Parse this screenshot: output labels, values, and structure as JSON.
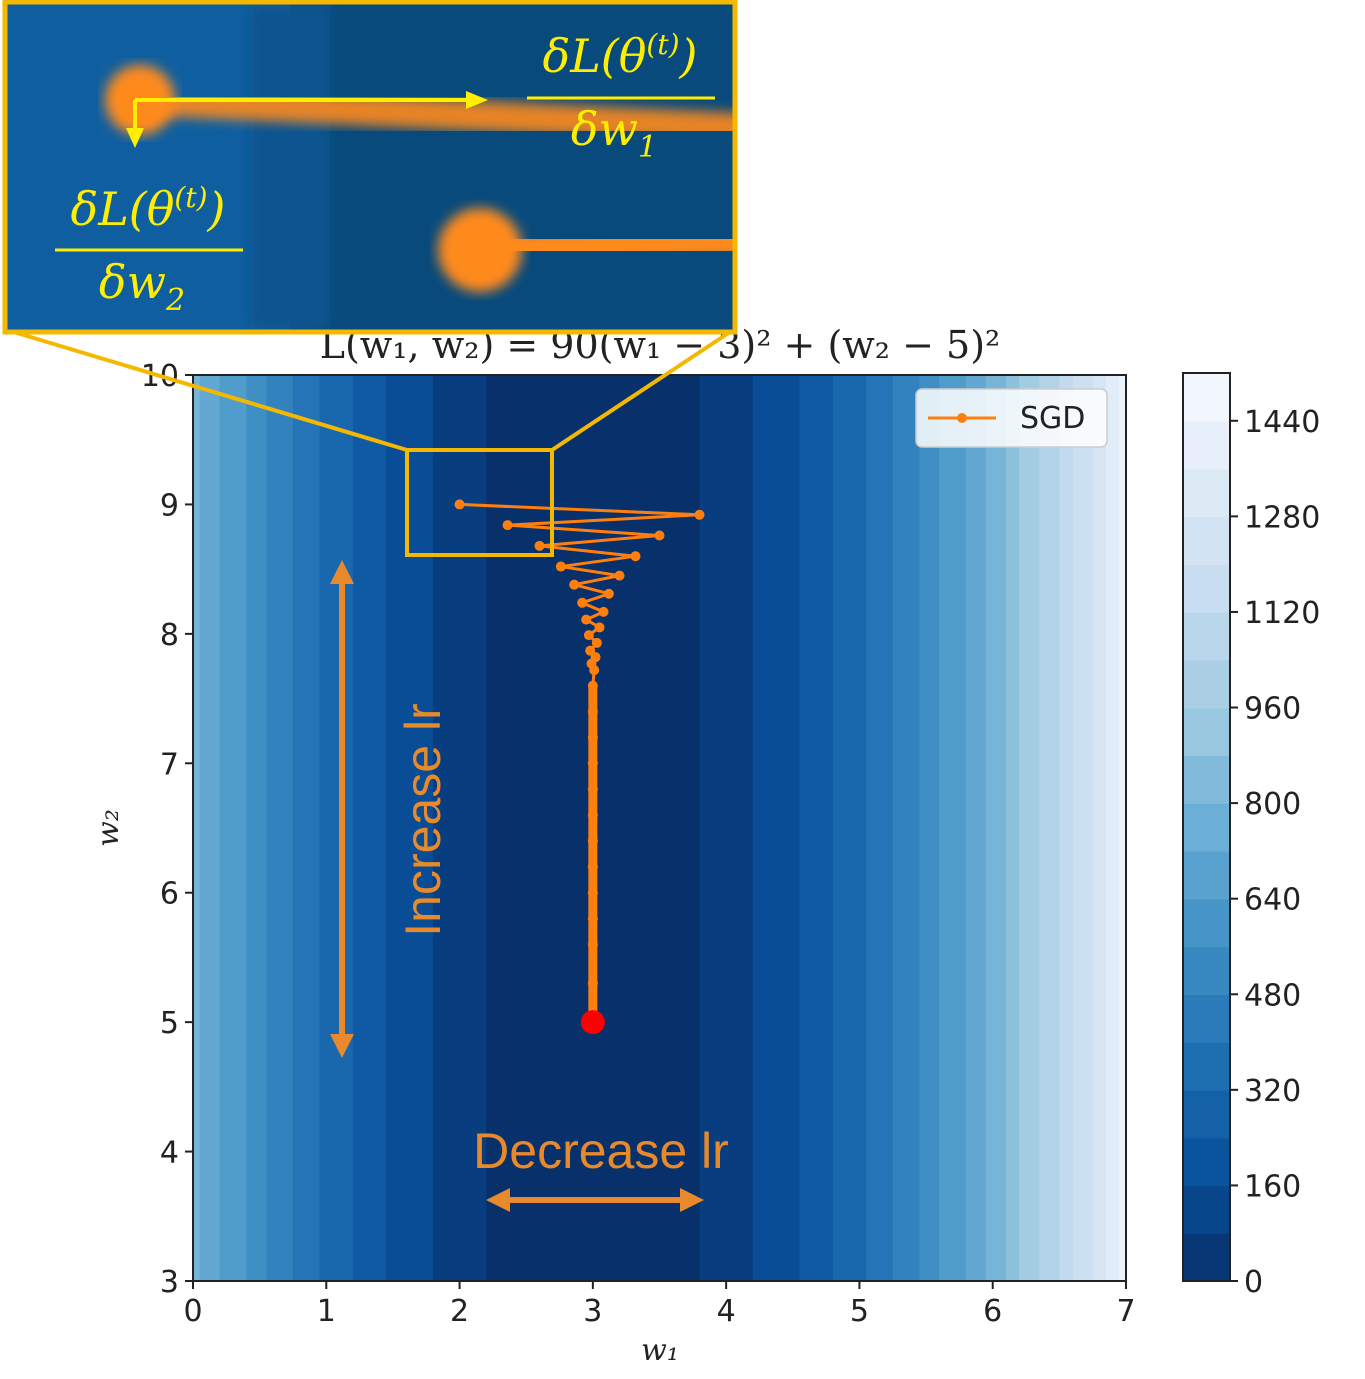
{
  "chart_data": {
    "type": "contour",
    "title": "L(w₁, w₂) = 90(w₁ − 3)² + (w₂ − 5)²",
    "xlabel": "w₁",
    "ylabel": "w₂",
    "xlim": [
      0,
      7
    ],
    "ylim": [
      3,
      10
    ],
    "xticks": [
      "0",
      "1",
      "2",
      "3",
      "4",
      "5",
      "6",
      "7"
    ],
    "yticks": [
      "3",
      "4",
      "5",
      "6",
      "7",
      "8",
      "9",
      "10"
    ],
    "colorbar": {
      "range": [
        0,
        1520
      ],
      "ticks": [
        "0",
        "160",
        "320",
        "480",
        "640",
        "800",
        "960",
        "1120",
        "1280",
        "1440"
      ],
      "colormap": "Blues_r"
    },
    "series": [
      {
        "name": "SGD",
        "color": "#ff7f0e",
        "marker": "o",
        "x": [
          2.0,
          3.8,
          2.36,
          3.5,
          2.6,
          3.32,
          2.76,
          3.2,
          2.86,
          3.12,
          2.92,
          3.08,
          2.95,
          3.05,
          2.97,
          3.03,
          2.98,
          3.02,
          2.99,
          3.01,
          3.0,
          3.0,
          3.0,
          3.0,
          3.0,
          3.0,
          3.0,
          3.0,
          3.0,
          3.0,
          3.0,
          3.0,
          3.0
        ],
        "y": [
          9.0,
          8.92,
          8.84,
          8.76,
          8.68,
          8.6,
          8.52,
          8.45,
          8.38,
          8.31,
          8.24,
          8.17,
          8.11,
          8.05,
          7.99,
          7.93,
          7.87,
          7.82,
          7.77,
          7.72,
          7.6,
          7.4,
          7.2,
          7.0,
          6.8,
          6.6,
          6.4,
          6.2,
          6.0,
          5.8,
          5.6,
          5.3,
          5.05
        ]
      }
    ],
    "minimum": {
      "x": 3,
      "y": 5,
      "color": "#ff0000"
    },
    "annotations": {
      "increase_label": "Increase lr",
      "decrease_label": "Decrease lr",
      "arrow_color": "#e8892b",
      "zoom_box_color": "#f5b800"
    },
    "inset": {
      "label_color": "#ffee00",
      "grad_w1": {
        "numerator": "δL(θ",
        "superscript": "(t)",
        "close": ")",
        "denominator": "δw",
        "subscript": "1"
      },
      "grad_w2": {
        "numerator": "δL(θ",
        "superscript": "(t)",
        "close": ")",
        "denominator": "δw",
        "subscript": "2"
      }
    },
    "legend": {
      "position": "top-right",
      "entries": [
        "SGD"
      ]
    }
  }
}
